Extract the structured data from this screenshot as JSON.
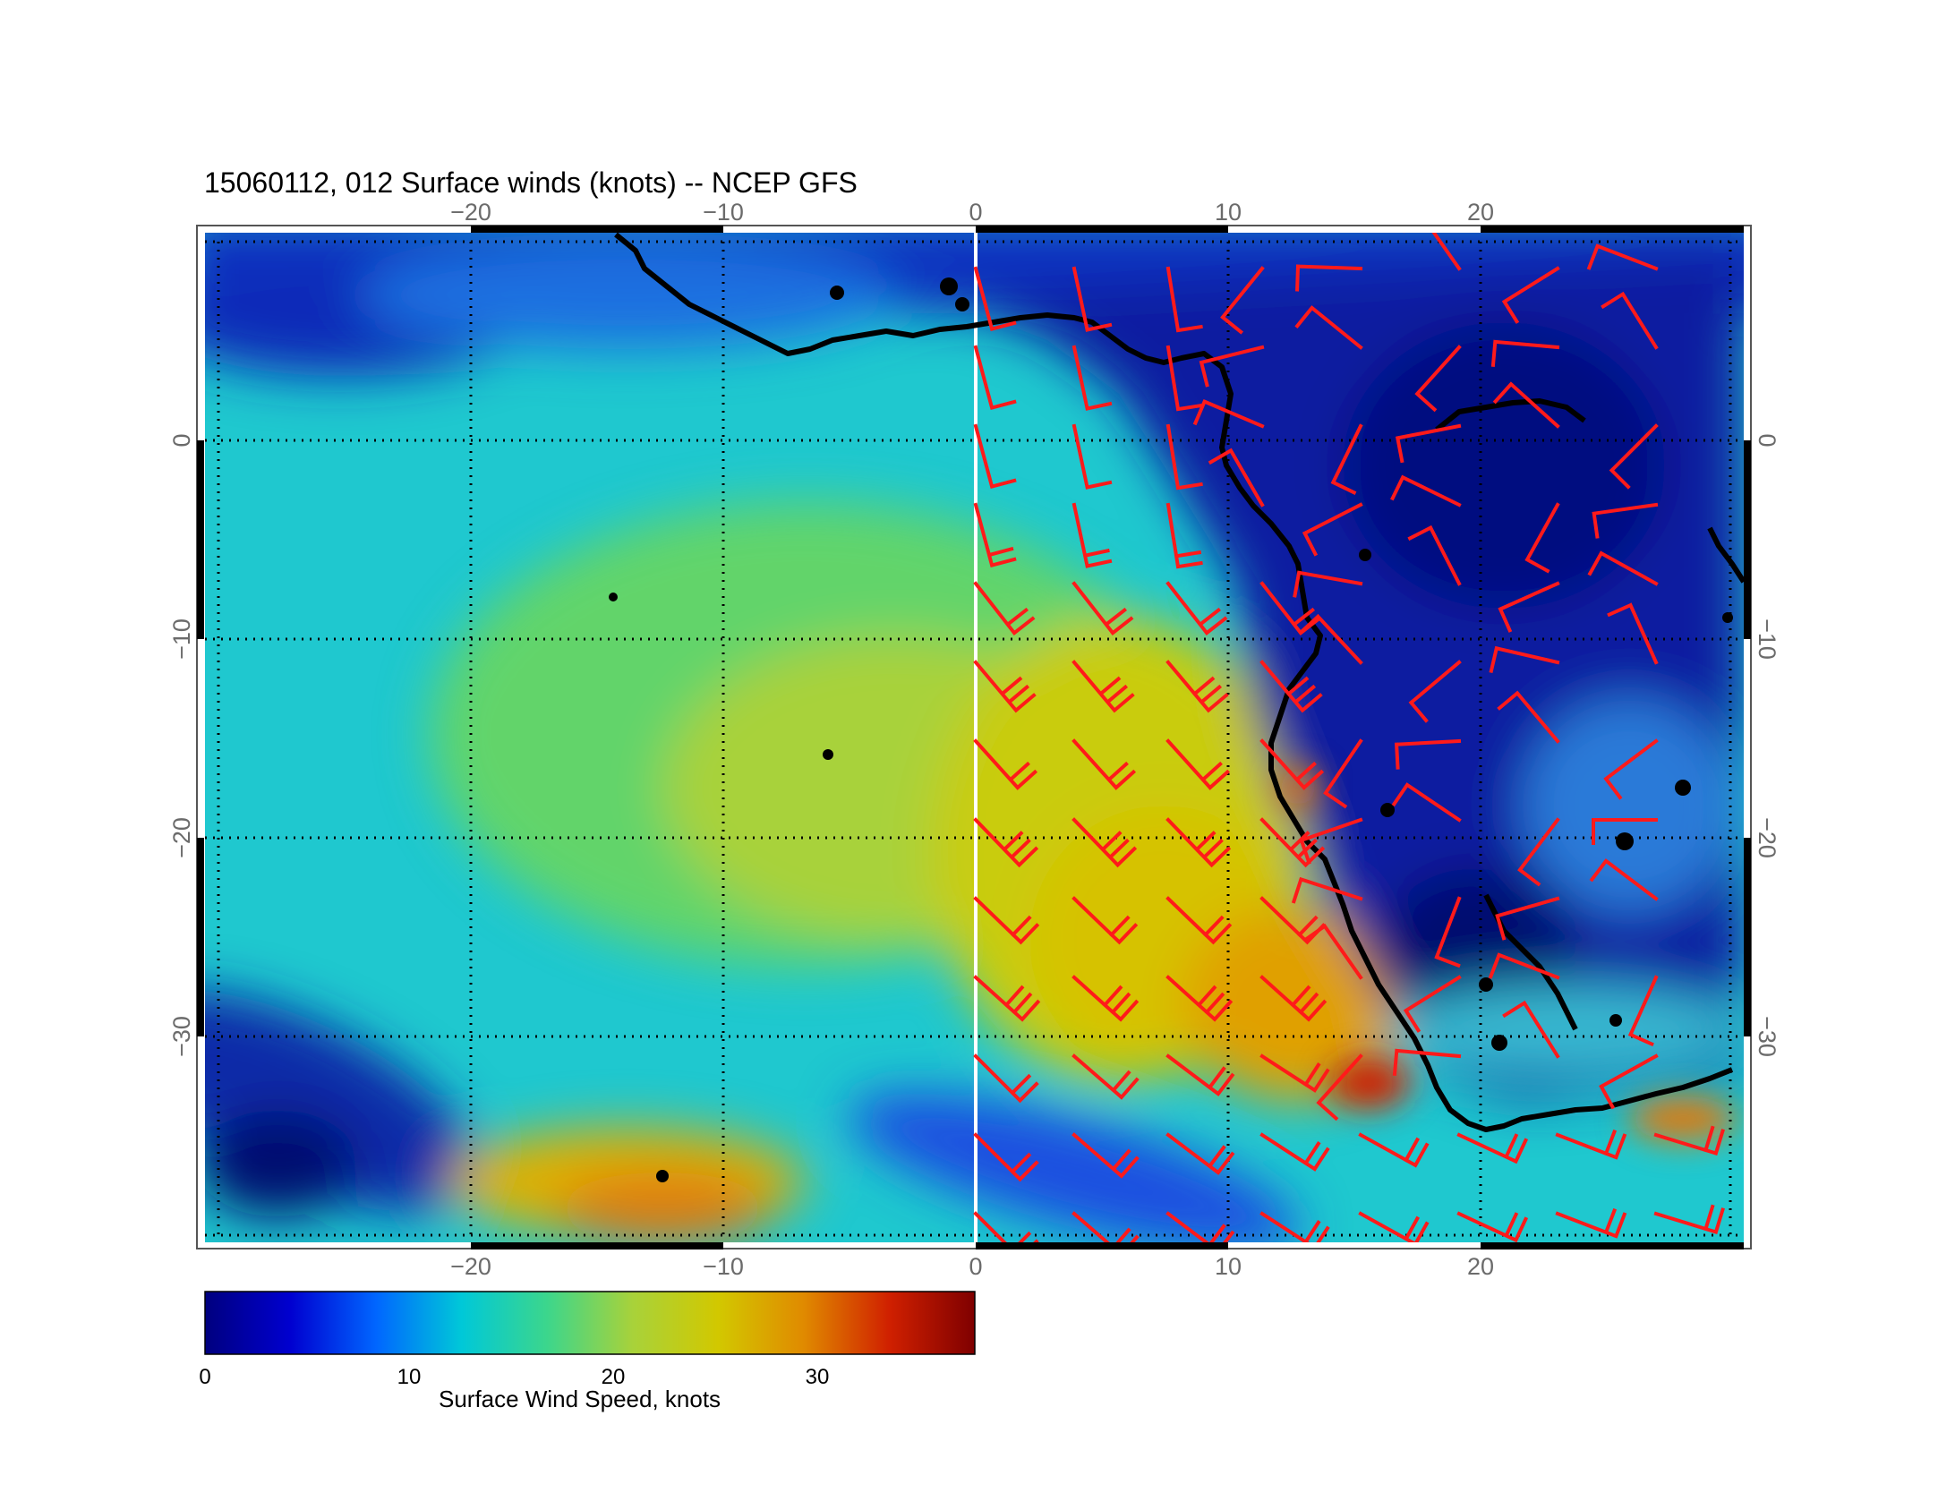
{
  "title": "15060112, 012 Surface winds (knots) -- NCEP GFS",
  "map": {
    "lon_range": [
      -30,
      31
    ],
    "lat_range": [
      -40,
      11
    ],
    "top_lon_ticks": [
      "−20",
      "−10",
      "0",
      "10",
      "20"
    ],
    "bottom_lon_ticks": [
      "−20",
      "−10",
      "0",
      "10",
      "20"
    ],
    "left_lat_ticks": [
      "0",
      "−10",
      "−20",
      "−30"
    ],
    "right_lat_ticks": [
      "0",
      "−10",
      "−20",
      "−30"
    ],
    "coast_color": "#000000",
    "barb_color": "#ff1a1a",
    "grid": "dotted"
  },
  "colorbar": {
    "labels": [
      "0",
      "10",
      "20",
      "30"
    ],
    "range": [
      0,
      38
    ],
    "title": "Surface Wind Speed, knots",
    "stops": [
      "#00007f",
      "#0000d0",
      "#0066ff",
      "#00c8d8",
      "#3cd68c",
      "#a8d23a",
      "#d2c800",
      "#e08a00",
      "#d02000",
      "#7f0000"
    ]
  }
}
